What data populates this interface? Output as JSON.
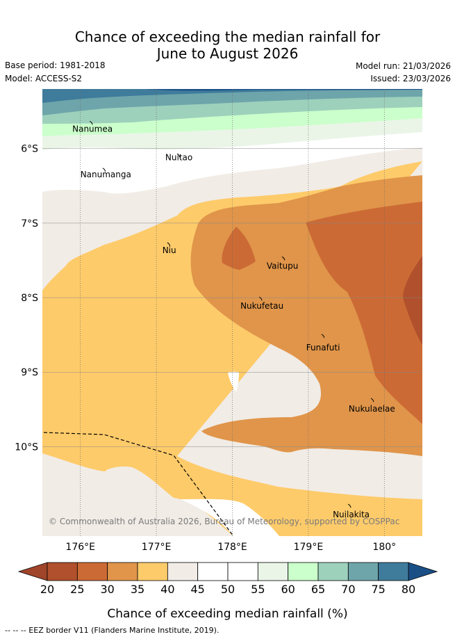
{
  "title_line1": "Chance of exceeding the median rainfall for",
  "title_line2": "June to August 2026",
  "meta": {
    "base_period": "Base period: 1981-2018",
    "model": "Model: ACCESS-S2",
    "model_run": "Model run: 21/03/2026",
    "issued": "Issued: 23/03/2026"
  },
  "map": {
    "lon_range": [
      175.5,
      180.5
    ],
    "lat_range": [
      -5.2,
      -11.2
    ],
    "lon_ticks": [
      {
        "value": 176,
        "label": "176°E"
      },
      {
        "value": 177,
        "label": "177°E"
      },
      {
        "value": 178,
        "label": "178°E"
      },
      {
        "value": 179,
        "label": "179°E"
      },
      {
        "value": 180,
        "label": "180°"
      }
    ],
    "lat_ticks": [
      {
        "value": -6,
        "label": "6°S"
      },
      {
        "value": -7,
        "label": "7°S"
      },
      {
        "value": -8,
        "label": "8°S"
      },
      {
        "value": -9,
        "label": "9°S"
      },
      {
        "value": -10,
        "label": "10°S"
      }
    ],
    "places": [
      {
        "name": "Nanumea",
        "lon": 176.15,
        "lat": -5.66
      },
      {
        "name": "Nanumanga",
        "lon": 176.32,
        "lat": -6.29
      },
      {
        "name": "Nuitao",
        "lon": 177.3,
        "lat": -6.1
      },
      {
        "name": "Niu",
        "lon": 177.17,
        "lat": -7.29
      },
      {
        "name": "Vaitupu",
        "lon": 178.68,
        "lat": -7.48
      },
      {
        "name": "Nukufetau",
        "lon": 178.38,
        "lat": -8.02
      },
      {
        "name": "Funafuti",
        "lon": 179.2,
        "lat": -8.52
      },
      {
        "name": "Nukulaelae",
        "lon": 179.85,
        "lat": -9.38
      },
      {
        "name": "Nuilakita",
        "lon": 179.55,
        "lat": -10.8
      }
    ],
    "copyright": "© Commonwealth of Australia 2026, Bureau of Meteorology, supported by COSPPac"
  },
  "colorbar": {
    "ticks": [
      "20",
      "25",
      "30",
      "35",
      "40",
      "45",
      "50",
      "55",
      "60",
      "65",
      "70",
      "75",
      "80"
    ],
    "colors": [
      "#b0502c",
      "#cc6a35",
      "#e0954a",
      "#fecb6a",
      "#f1ece6",
      "#ffffff",
      "#ffffff",
      "#eaf5e8",
      "#cbffcb",
      "#9dd1bc",
      "#6ea5aa",
      "#3f7b9b"
    ],
    "under_color": "#a0442a",
    "over_color": "#1a4f86",
    "label": "Chance of exceeding median rainfall (%)"
  },
  "footnote": "--  --  -- EEZ border V11 (Flanders Marine Institute, 2019)."
}
